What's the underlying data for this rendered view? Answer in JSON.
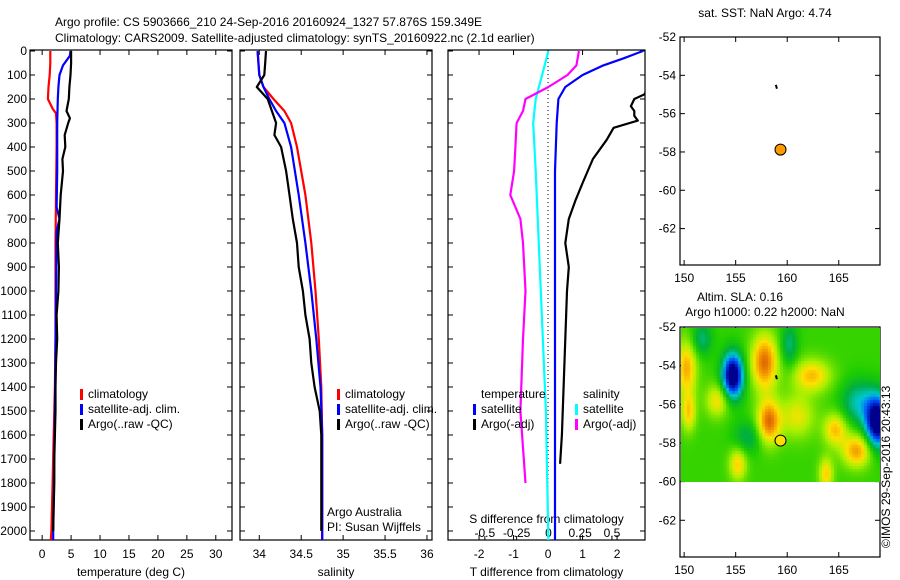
{
  "title": {
    "line1": "Argo profile: CS 5903666_210 24-Sep-2016 20160924_1327 57.876S 159.349E",
    "line2": "Climatology: CARS2009. Satellite-adjusted climatology: synTS_20160922.nc (2.1d earlier)"
  },
  "annotations": {
    "argo_australia": "Argo Australia",
    "pi": "PI: Susan Wijffels",
    "copyright": "©IMOS 29-Sep-2016 20:43:13"
  },
  "chart_data": [
    {
      "type": "line",
      "id": "temperature",
      "xlabel": "temperature (deg C)",
      "ylabel": "depth",
      "xlim": [
        -2.1,
        32.8
      ],
      "ylim": [
        0,
        2040
      ],
      "y_inverted": true,
      "xticks": [
        0,
        5,
        10,
        15,
        20,
        25,
        30
      ],
      "yticks": [
        0,
        100,
        200,
        300,
        400,
        500,
        600,
        700,
        800,
        900,
        1000,
        1100,
        1200,
        1300,
        1400,
        1500,
        1600,
        1700,
        1800,
        1900,
        2000
      ],
      "legend": [
        "climatology",
        "satellite-adj. clim.",
        "Argo(..raw -QC)"
      ],
      "series": [
        {
          "name": "climatology",
          "color": "#ff0000",
          "depth": [
            0,
            50,
            100,
            150,
            200,
            240,
            260,
            300,
            400,
            600,
            800,
            1000,
            1200,
            1400,
            1600,
            1800,
            2000,
            2040
          ],
          "values": [
            1.4,
            1.4,
            1.3,
            1.1,
            1.0,
            1.8,
            2.4,
            2.5,
            2.5,
            2.4,
            2.3,
            2.3,
            2.3,
            2.2,
            2.0,
            1.8,
            1.6,
            1.5
          ]
        },
        {
          "name": "satellite-adj. clim.",
          "color": "#0000ff",
          "depth": [
            0,
            20,
            60,
            100,
            150,
            200,
            300,
            500,
            650,
            700,
            750,
            1000,
            1500,
            2000,
            2040
          ],
          "values": [
            4.9,
            4.8,
            3.6,
            3.0,
            2.8,
            2.7,
            2.6,
            2.6,
            2.5,
            3.0,
            2.5,
            2.4,
            2.2,
            1.9,
            1.9
          ]
        },
        {
          "name": "Argo(..raw -QC)",
          "color": "#000000",
          "depth": [
            0,
            50,
            100,
            150,
            200,
            250,
            280,
            300,
            350,
            400,
            450,
            500,
            600,
            700,
            800,
            900,
            1000,
            1100,
            1200,
            1300,
            1400,
            1500,
            1600,
            1700,
            1800,
            1900,
            2000
          ],
          "values": [
            5.0,
            5.0,
            4.9,
            4.7,
            4.6,
            4.2,
            4.8,
            4.5,
            3.9,
            4.0,
            3.5,
            3.6,
            3.2,
            3.0,
            2.7,
            2.9,
            2.8,
            2.5,
            2.6,
            2.4,
            2.3,
            2.3,
            2.2,
            2.1,
            2.1,
            2.0,
            1.9
          ]
        }
      ]
    },
    {
      "type": "line",
      "id": "salinity",
      "xlabel": "salinity",
      "xlim": [
        33.77,
        36.06
      ],
      "ylim": [
        0,
        2040
      ],
      "y_inverted": true,
      "xticks": [
        34,
        34.5,
        35,
        35.5,
        36
      ],
      "xticklabels": [
        "34",
        "34.5",
        "35",
        "35.5",
        "36"
      ],
      "legend": [
        "climatology",
        "satellite-adj. clim.",
        "Argo(..raw -QC)"
      ],
      "series": [
        {
          "name": "climatology",
          "color": "#ff0000",
          "depth": [
            0,
            100,
            150,
            200,
            250,
            300,
            400,
            500,
            600,
            800,
            1000,
            1200,
            1400,
            1600,
            2040
          ],
          "values": [
            33.98,
            34.0,
            34.05,
            34.17,
            34.3,
            34.38,
            34.45,
            34.5,
            34.55,
            34.62,
            34.67,
            34.71,
            34.74,
            34.75,
            34.75
          ]
        },
        {
          "name": "satellite-adj. clim.",
          "color": "#0000ff",
          "depth": [
            0,
            100,
            150,
            200,
            250,
            300,
            400,
            600,
            800,
            1000,
            1200,
            1400,
            1600,
            2040
          ],
          "values": [
            33.98,
            34.0,
            34.05,
            34.12,
            34.2,
            34.3,
            34.38,
            34.47,
            34.55,
            34.62,
            34.68,
            34.73,
            34.75,
            34.75
          ]
        },
        {
          "name": "Argo(..raw -QC)",
          "color": "#000000",
          "depth": [
            0,
            50,
            100,
            150,
            200,
            250,
            300,
            350,
            400,
            500,
            600,
            700,
            800,
            900,
            1000,
            1100,
            1200,
            1300,
            1400,
            1500,
            1600,
            1700,
            1800,
            2000
          ],
          "values": [
            34.08,
            34.07,
            34.06,
            33.97,
            34.1,
            34.15,
            34.2,
            34.18,
            34.26,
            34.32,
            34.36,
            34.4,
            34.45,
            34.47,
            34.52,
            34.55,
            34.6,
            34.62,
            34.66,
            34.72,
            34.74,
            34.74,
            34.74,
            34.74
          ]
        }
      ]
    },
    {
      "type": "line",
      "id": "difference",
      "xlabel": "T difference from climatology",
      "xlabel_secondary": "S difference from climatology",
      "xlim": [
        -2.9,
        2.81
      ],
      "xlim_secondary": [
        -0.79,
        0.76
      ],
      "ylim": [
        0,
        2040
      ],
      "y_inverted": true,
      "xticks": [
        -2,
        -1,
        0,
        1,
        2
      ],
      "xticks_secondary": [
        -0.5,
        -0.25,
        0,
        0.25,
        0.5
      ],
      "xticklabels_secondary": [
        "-0.5",
        "-0.25",
        "0",
        "0.25",
        "0.5"
      ],
      "legend_groups": [
        {
          "title": "temperature",
          "items": [
            "satellite",
            "Argo(-adj)"
          ]
        },
        {
          "title": "salinity",
          "items": [
            "satellite",
            "Argo(-adj)"
          ]
        }
      ],
      "series": [
        {
          "name": "T satellite",
          "axis": "T",
          "color": "#0000ff",
          "depth": [
            0,
            30,
            60,
            100,
            150,
            200,
            300,
            500,
            1000,
            1500,
            2000,
            2040
          ],
          "values": [
            2.75,
            2.2,
            1.6,
            1.0,
            0.5,
            0.3,
            0.25,
            0.2,
            0.2,
            0.2,
            0.2,
            0.2
          ]
        },
        {
          "name": "T Argo(-adj)",
          "axis": "T",
          "color": "#000000",
          "depth": [
            140,
            160,
            180,
            200,
            230,
            250,
            270,
            290,
            320,
            370,
            450,
            550,
            620,
            700,
            800,
            900,
            1000,
            1200,
            1400,
            1600,
            1720
          ],
          "values": [
            2.9,
            2.85,
            2.8,
            2.5,
            2.4,
            2.5,
            2.5,
            2.6,
            1.9,
            1.7,
            1.3,
            1.0,
            0.8,
            0.6,
            0.5,
            0.6,
            0.55,
            0.5,
            0.45,
            0.4,
            0.35
          ]
        },
        {
          "name": "S satellite",
          "axis": "S",
          "color": "#00ffff",
          "depth": [
            0,
            100,
            200,
            300,
            500,
            1000,
            1500,
            2040
          ],
          "values": [
            0.0,
            -0.05,
            -0.1,
            -0.12,
            -0.1,
            -0.06,
            -0.02,
            0.0
          ]
        },
        {
          "name": "S Argo(-adj)",
          "axis": "S",
          "color": "#ff00ff",
          "depth": [
            0,
            60,
            100,
            150,
            200,
            250,
            300,
            400,
            500,
            600,
            700,
            800,
            1000,
            1200,
            1500,
            1800
          ],
          "values": [
            0.24,
            0.22,
            0.15,
            0.0,
            -0.18,
            -0.2,
            -0.25,
            -0.26,
            -0.27,
            -0.3,
            -0.22,
            -0.2,
            -0.18,
            -0.2,
            -0.22,
            -0.18
          ]
        }
      ]
    },
    {
      "type": "scatter",
      "id": "sst-map",
      "title": "sat. SST: NaN Argo: 4.74",
      "xlim": [
        149.6,
        169
      ],
      "ylim": [
        -52,
        -63.9
      ],
      "xticks": [
        150,
        155,
        160,
        165
      ],
      "yticks": [
        -52,
        -54,
        -56,
        -58,
        -60,
        -62
      ],
      "profile": {
        "lon": 159.349,
        "lat": -57.876,
        "color": "#ff9900"
      },
      "track": {
        "lon": [
          158.9,
          159.0
        ],
        "lat": [
          -54.5,
          -54.7
        ]
      }
    },
    {
      "type": "heatmap",
      "id": "sla-map",
      "title": "Altim. SLA: 0.16",
      "subtitle": "Argo h1000: 0.22 h2000: NaN",
      "xlim": [
        149.6,
        169
      ],
      "ylim": [
        -52,
        -63.9
      ],
      "data_lat_range": [
        -52,
        -60
      ],
      "xticks": [
        150,
        155,
        160,
        165
      ],
      "yticks": [
        -52,
        -54,
        -56,
        -58,
        -60,
        -62
      ],
      "profile": {
        "lon": 159.349,
        "lat": -57.876,
        "color": "#ffdd00"
      },
      "track": {
        "lon": [
          158.9,
          159.0
        ],
        "lat": [
          -54.5,
          -54.7
        ]
      },
      "sla_features": [
        {
          "lon": 154.5,
          "lat": -54.4,
          "amp": -1.3,
          "sx": 0.7,
          "sy": 0.8
        },
        {
          "lon": 157.6,
          "lat": -53.7,
          "amp": 0.8,
          "sx": 0.9,
          "sy": 1.0
        },
        {
          "lon": 158.0,
          "lat": -56.8,
          "amp": 0.8,
          "sx": 0.8,
          "sy": 0.8
        },
        {
          "lon": 168.6,
          "lat": -56.8,
          "amp": -1.3,
          "sx": 0.8,
          "sy": 0.9
        },
        {
          "lon": 166.8,
          "lat": -55.8,
          "amp": -0.45,
          "sx": 1.2,
          "sy": 0.8
        },
        {
          "lon": 166.6,
          "lat": -58.3,
          "amp": 0.65,
          "sx": 1.0,
          "sy": 0.6
        },
        {
          "lon": 150.0,
          "lat": -54.0,
          "amp": 0.6,
          "sx": 0.7,
          "sy": 1.0
        },
        {
          "lon": 162.2,
          "lat": -54.4,
          "amp": 0.55,
          "sx": 1.3,
          "sy": 0.6
        },
        {
          "lon": 153.0,
          "lat": -55.7,
          "amp": 0.45,
          "sx": 0.8,
          "sy": 0.6
        },
        {
          "lon": 155.0,
          "lat": -59.0,
          "amp": 0.5,
          "sx": 0.6,
          "sy": 0.6
        },
        {
          "lon": 163.6,
          "lat": -59.5,
          "amp": 0.5,
          "sx": 0.5,
          "sy": 0.6
        },
        {
          "lon": 151.5,
          "lat": -52.5,
          "amp": -0.35,
          "sx": 0.7,
          "sy": 0.6
        },
        {
          "lon": 160.0,
          "lat": -52.8,
          "amp": -0.35,
          "sx": 0.6,
          "sy": 0.8
        },
        {
          "lon": 160.8,
          "lat": -56.5,
          "amp": 0.4,
          "sx": 1.2,
          "sy": 0.8
        },
        {
          "lon": 150.2,
          "lat": -56.3,
          "amp": 0.5,
          "sx": 0.5,
          "sy": 0.7
        },
        {
          "lon": 156.0,
          "lat": -57.6,
          "amp": -0.3,
          "sx": 1.0,
          "sy": 0.6
        },
        {
          "lon": 164.5,
          "lat": -57.2,
          "amp": 0.55,
          "sx": 0.8,
          "sy": 0.6
        }
      ]
    }
  ]
}
